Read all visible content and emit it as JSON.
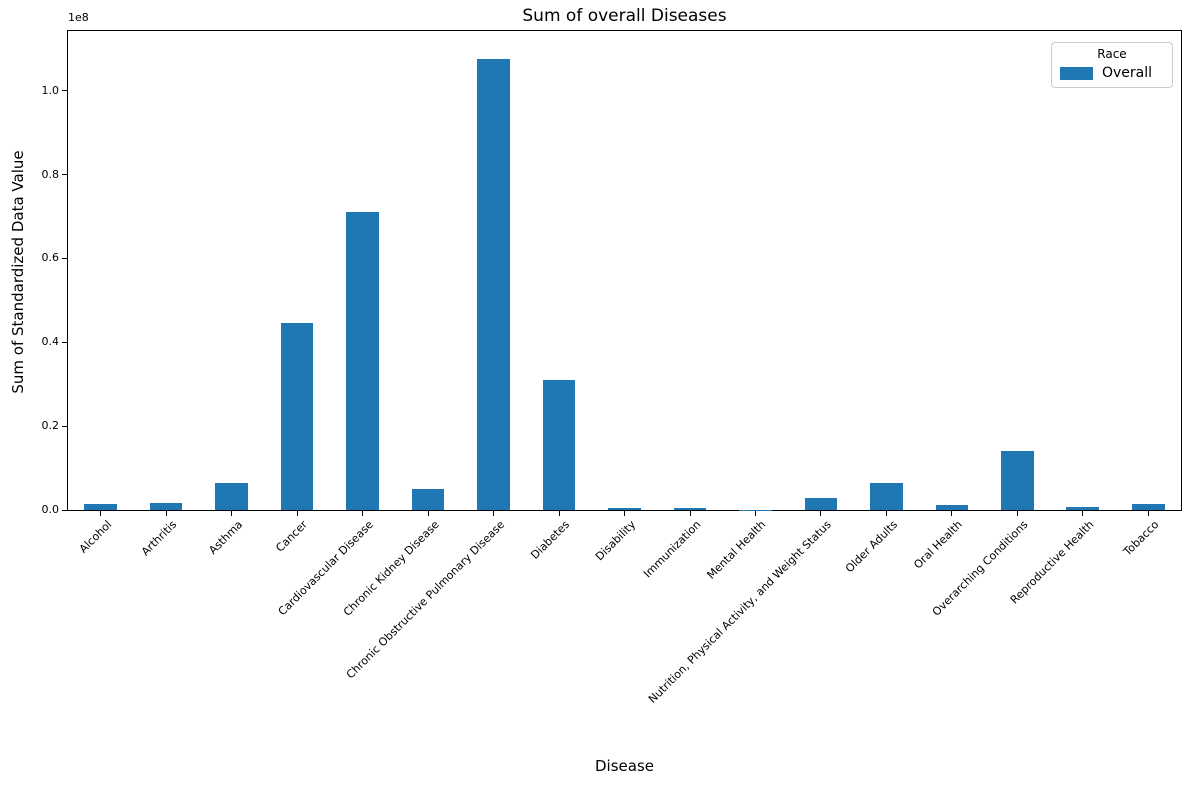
{
  "chart_data": {
    "type": "bar",
    "title": "Sum of overall Diseases",
    "xlabel": "Disease",
    "ylabel": "Sum of Standardized Data Value",
    "y_offset_text": "1e8",
    "bar_color": "#1f77b4",
    "grid": false,
    "legend": {
      "position": "upper right",
      "title": "Race",
      "entries": [
        {
          "label": "Overall",
          "color": "#1f77b4"
        }
      ]
    },
    "categories": [
      "Alcohol",
      "Arthritis",
      "Asthma",
      "Cancer",
      "Cardiovascular Disease",
      "Chronic Kidney Disease",
      "Chronic Obstructive Pulmonary Disease",
      "Diabetes",
      "Disability",
      "Immunization",
      "Mental Health",
      "Nutrition, Physical Activity, and Weight Status",
      "Older Adults",
      "Oral Health",
      "Overarching Conditions",
      "Reproductive Health",
      "Tobacco"
    ],
    "series": [
      {
        "name": "Overall",
        "values": [
          1500000,
          1800000,
          6500000,
          44500000,
          71000000,
          5000000,
          107500000,
          31000000,
          500000,
          500000,
          50000,
          2800000,
          6500000,
          1200000,
          14200000,
          800000,
          1500000
        ]
      }
    ],
    "yticks": [
      0,
      20000000,
      40000000,
      60000000,
      80000000,
      100000000
    ],
    "ytick_labels": [
      "0.0",
      "0.2",
      "0.4",
      "0.6",
      "0.8",
      "1.0"
    ],
    "ylim": [
      0,
      114250000
    ]
  }
}
